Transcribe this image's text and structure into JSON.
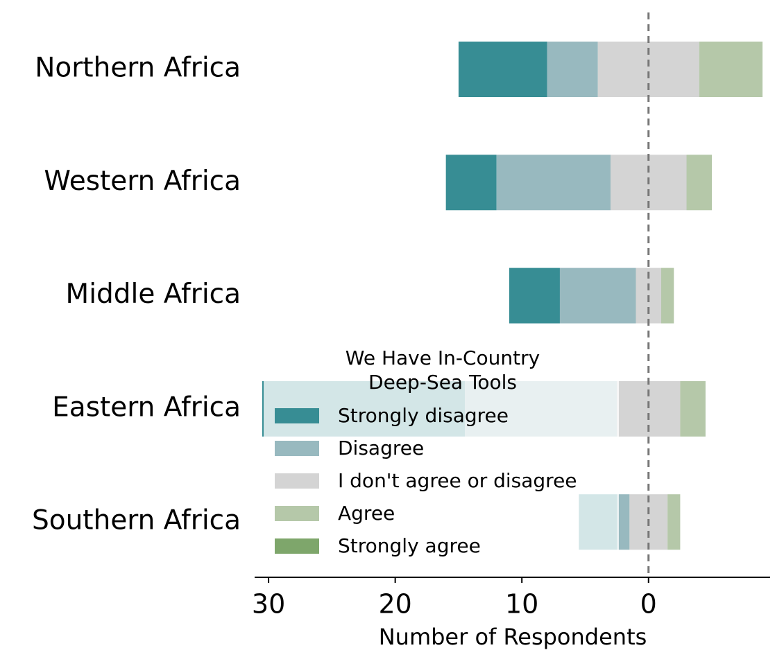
{
  "chart_data": {
    "type": "diverging_bar",
    "categories": [
      "Northern Africa",
      "Western Africa",
      "Middle Africa",
      "Eastern Africa",
      "Southern Africa"
    ],
    "series": [
      {
        "name": "Strongly disagree",
        "color": "#378d94",
        "values": [
          7,
          4,
          4,
          16,
          3
        ]
      },
      {
        "name": "Disagree",
        "color": "#98b9bf",
        "values": [
          4,
          9,
          6,
          12,
          1
        ]
      },
      {
        "name": "I don't agree or disagree",
        "color": "#d4d4d4",
        "values": [
          8,
          6,
          2,
          5,
          3
        ]
      },
      {
        "name": "Agree",
        "color": "#b5c8a9",
        "values": [
          5,
          2,
          1,
          2,
          1
        ]
      },
      {
        "name": "Strongly agree",
        "color": "#7ea66b",
        "values": [
          0,
          0,
          0,
          0,
          0
        ]
      }
    ],
    "legend_title": "We Have In-Country\nDeep-Sea Tools",
    "xlabel": "Number of Respondents",
    "xlim": [
      31.1,
      -9.6
    ],
    "xticks": [
      30,
      20,
      10,
      0
    ]
  }
}
